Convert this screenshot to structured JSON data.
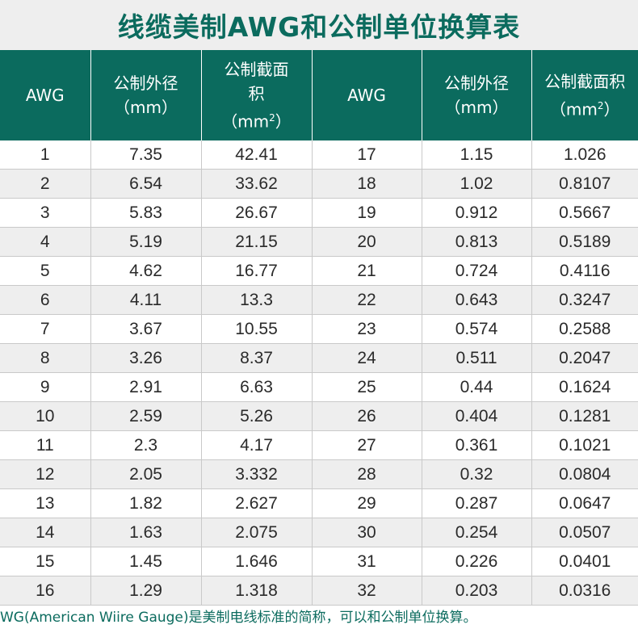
{
  "title": "线缆美制AWG和公制单位换算表",
  "headers": {
    "awg": "AWG",
    "diameter_line1": "公制外径",
    "diameter_line2": "（mm）",
    "area_line1a": "公制截面",
    "area_line1b": "积",
    "area_unit_prefix": "（mm",
    "area_unit_sup": "2",
    "area_unit_suffix": "）",
    "area2_line1": "公制截面积",
    "area2_unit_prefix": "（mm",
    "area2_unit_sup": "2",
    "area2_unit_suffix": "）"
  },
  "rows": [
    {
      "awg1": "1",
      "d1": "7.35",
      "a1": "42.41",
      "awg2": "17",
      "d2": "1.15",
      "a2": "1.026"
    },
    {
      "awg1": "2",
      "d1": "6.54",
      "a1": "33.62",
      "awg2": "18",
      "d2": "1.02",
      "a2": "0.8107"
    },
    {
      "awg1": "3",
      "d1": "5.83",
      "a1": "26.67",
      "awg2": "19",
      "d2": "0.912",
      "a2": "0.5667"
    },
    {
      "awg1": "4",
      "d1": "5.19",
      "a1": "21.15",
      "awg2": "20",
      "d2": "0.813",
      "a2": "0.5189"
    },
    {
      "awg1": "5",
      "d1": "4.62",
      "a1": "16.77",
      "awg2": "21",
      "d2": "0.724",
      "a2": "0.4116"
    },
    {
      "awg1": "6",
      "d1": "4.11",
      "a1": "13.3",
      "awg2": "22",
      "d2": "0.643",
      "a2": "0.3247"
    },
    {
      "awg1": "7",
      "d1": "3.67",
      "a1": "10.55",
      "awg2": "23",
      "d2": "0.574",
      "a2": "0.2588"
    },
    {
      "awg1": "8",
      "d1": "3.26",
      "a1": "8.37",
      "awg2": "24",
      "d2": "0.511",
      "a2": "0.2047"
    },
    {
      "awg1": "9",
      "d1": "2.91",
      "a1": "6.63",
      "awg2": "25",
      "d2": "0.44",
      "a2": "0.1624"
    },
    {
      "awg1": "10",
      "d1": "2.59",
      "a1": "5.26",
      "awg2": "26",
      "d2": "0.404",
      "a2": "0.1281"
    },
    {
      "awg1": "11",
      "d1": "2.3",
      "a1": "4.17",
      "awg2": "27",
      "d2": "0.361",
      "a2": "0.1021"
    },
    {
      "awg1": "12",
      "d1": "2.05",
      "a1": "3.332",
      "awg2": "28",
      "d2": "0.32",
      "a2": "0.0804"
    },
    {
      "awg1": "13",
      "d1": "1.82",
      "a1": "2.627",
      "awg2": "29",
      "d2": "0.287",
      "a2": "0.0647"
    },
    {
      "awg1": "14",
      "d1": "1.63",
      "a1": "2.075",
      "awg2": "30",
      "d2": "0.254",
      "a2": "0.0507"
    },
    {
      "awg1": "15",
      "d1": "1.45",
      "a1": "1.646",
      "awg2": "31",
      "d2": "0.226",
      "a2": "0.0401"
    },
    {
      "awg1": "16",
      "d1": "1.29",
      "a1": "1.318",
      "awg2": "32",
      "d2": "0.203",
      "a2": "0.0316"
    }
  ],
  "footnote": {
    "awg": "WG",
    "paren": "(American  Wiire Gauge)",
    "desc": "是美制电线标准的简称，可以和公制单位换算。"
  },
  "colors": {
    "brand": "#0b6b5e",
    "stripe": "#eeeeee"
  }
}
